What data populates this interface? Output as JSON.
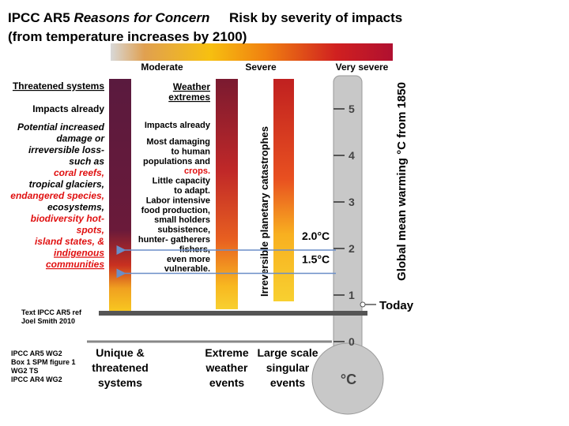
{
  "title": {
    "prefix": "IPCC  AR5 ",
    "italic": "Reasons for Concern",
    "right": "Risk by severity of impacts",
    "line2": "(from temperature increases by 2100)"
  },
  "severity_labels": [
    "Moderate",
    "Severe",
    "Very severe"
  ],
  "unique_systems": {
    "heading": "Threatened systems",
    "impacts": "Impacts already",
    "lines": [
      {
        "text": "Potential increased",
        "red": false
      },
      {
        "text": "damage or",
        "red": false
      },
      {
        "text": "irreversible loss-",
        "red": false
      },
      {
        "text": "such as",
        "red": false
      },
      {
        "text": "coral reefs,",
        "red": true
      },
      {
        "text": "tropical glaciers,",
        "red": false
      },
      {
        "text": "endangered species,",
        "red": true
      },
      {
        "text": "ecosystems,",
        "red": false
      },
      {
        "text": "biodiversity hot-",
        "red": true
      },
      {
        "text": "spots,",
        "red": true
      },
      {
        "text": "island states, &",
        "red": true
      },
      {
        "text": "indigenous",
        "red": true
      },
      {
        "text": "communities",
        "red": true
      }
    ]
  },
  "weather_events": {
    "heading": [
      "Weather",
      "extremes"
    ],
    "impacts": "Impacts already",
    "lines": [
      {
        "text": "Most damaging",
        "red": false
      },
      {
        "text": "to human",
        "red": false
      },
      {
        "text": "populations and",
        "red": false
      },
      {
        "text": "crops.",
        "red": true
      },
      {
        "text": "Little capacity",
        "red": false
      },
      {
        "text": "to adapt.",
        "red": false
      },
      {
        "text": "Labor intensive",
        "red": false
      },
      {
        "text": "food production,",
        "red": false
      },
      {
        "text": "small holders",
        "red": false
      },
      {
        "text": "subsistence,",
        "red": false
      },
      {
        "text": "hunter- gatherers",
        "red": false
      },
      {
        "text": "fishers,",
        "red": false
      },
      {
        "text": "even more",
        "red": false
      },
      {
        "text": "vulnerable.",
        "red": false
      }
    ]
  },
  "singular_label": "Irreversible planetary catastrophes",
  "thermometer": {
    "axis_label": "Global mean warming °C from 1850",
    "ticks": [
      0,
      1,
      2,
      3,
      4,
      5
    ],
    "unit": "°C",
    "today": "Today",
    "markers": [
      {
        "label": "2.0°C",
        "value": 2.0
      },
      {
        "label": "1.5°C",
        "value": 1.5
      }
    ]
  },
  "categories": [
    [
      "Unique &",
      "threatened",
      "systems"
    ],
    [
      "Extreme",
      "weather",
      "events"
    ],
    [
      "Large scale",
      "singular",
      "events"
    ]
  ],
  "notes": [
    [
      "Text IPCC AR5 ref",
      "Joel Smith 2010"
    ],
    [
      "IPCC AR5 WG2",
      "Box 1 SPM figure 1",
      "WG2  TS",
      "IPCC AR4 WG2"
    ]
  ]
}
